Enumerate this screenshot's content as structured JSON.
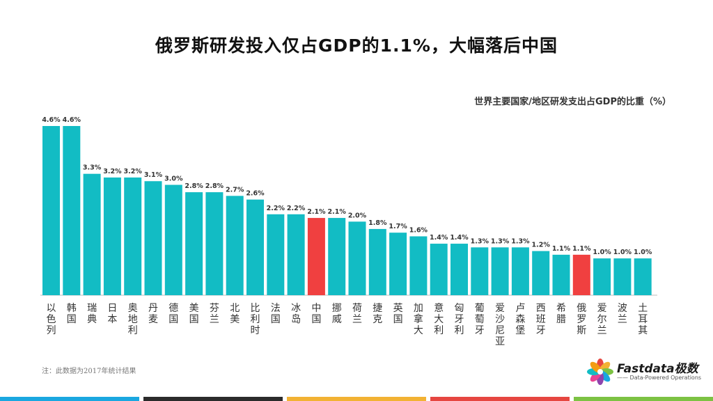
{
  "title": "俄罗斯研发投入仅占GDP的1.1%，大幅落后中国",
  "subtitle": "世界主要国家/地区研发支出占GDP的比重（%）",
  "note": "注：此数据为2017年统计结果",
  "logo": {
    "name": "Fastdata极数",
    "tagline": "—— Data-Powered Operations"
  },
  "colors": {
    "bar": "#12BCC4",
    "highlight": "#F04040",
    "footer": [
      "#1AA7E0",
      "#2B2B2B",
      "#F2B233",
      "#E64640",
      "#7CC243"
    ]
  },
  "chart_data": {
    "type": "bar",
    "title": "俄罗斯研发投入仅占GDP的1.1%，大幅落后中国",
    "subtitle": "世界主要国家/地区研发支出占GDP的比重（%）",
    "categories": [
      "以色列",
      "韩国",
      "瑞典",
      "日本",
      "奥地利",
      "丹麦",
      "德国",
      "美国",
      "芬兰",
      "北美",
      "比利时",
      "法国",
      "冰岛",
      "中国",
      "挪威",
      "荷兰",
      "捷克",
      "英国",
      "加拿大",
      "意大利",
      "匈牙利",
      "葡萄牙",
      "爱沙尼亚",
      "卢森堡",
      "西班牙",
      "希腊",
      "俄罗斯",
      "爱尔兰",
      "波兰",
      "土耳其"
    ],
    "values": [
      4.6,
      4.6,
      3.3,
      3.2,
      3.2,
      3.1,
      3.0,
      2.8,
      2.8,
      2.7,
      2.6,
      2.2,
      2.2,
      2.1,
      2.1,
      2.0,
      1.8,
      1.7,
      1.6,
      1.4,
      1.4,
      1.3,
      1.3,
      1.3,
      1.2,
      1.1,
      1.1,
      1.0,
      1.0,
      1.0
    ],
    "labels": [
      "4.6%",
      "4.6%",
      "3.3%",
      "3.2%",
      "3.2%",
      "3.1%",
      "3.0%",
      "2.8%",
      "2.8%",
      "2.7%",
      "2.6%",
      "2.2%",
      "2.2%",
      "2.1%",
      "2.1%",
      "2.0%",
      "1.8%",
      "1.7%",
      "1.6%",
      "1.4%",
      "1.4%",
      "1.3%",
      "1.3%",
      "1.3%",
      "1.2%",
      "1.1%",
      "1.1%",
      "1.0%",
      "1.0%",
      "1.0%"
    ],
    "highlight": [
      "中国",
      "俄罗斯"
    ],
    "ylim": [
      0,
      4.6
    ],
    "grid": false,
    "legend": "none"
  }
}
